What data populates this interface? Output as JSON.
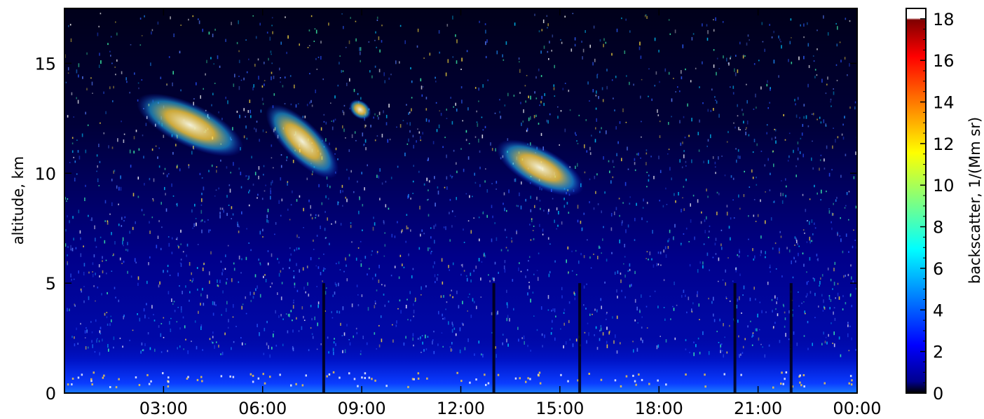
{
  "chart_data": {
    "type": "heatmap",
    "title": "",
    "xlabel": "",
    "ylabel": "altitude, km",
    "x_tick_labels": [
      "03:00",
      "06:00",
      "09:00",
      "12:00",
      "15:00",
      "18:00",
      "21:00",
      "00:00"
    ],
    "x_tick_hours": [
      3,
      6,
      9,
      12,
      15,
      18,
      21,
      24
    ],
    "xlim_hours": [
      0,
      24
    ],
    "y_tick_labels": [
      "0",
      "5",
      "10",
      "15"
    ],
    "y_tick_values": [
      0,
      5,
      10,
      15
    ],
    "ylim": [
      0,
      17.5
    ],
    "colorbar": {
      "label": "backscatter, 1/(Mm sr)",
      "tick_labels": [
        "0",
        "2",
        "4",
        "6",
        "8",
        "10",
        "12",
        "14",
        "16",
        "18"
      ],
      "tick_values": [
        0,
        2,
        4,
        6,
        8,
        10,
        12,
        14,
        16,
        18
      ],
      "range": [
        0,
        18.5
      ],
      "colormap": "jet"
    },
    "features": [
      {
        "kind": "cirrus",
        "time_hours": [
          2.3,
          5.3
        ],
        "altitude_km": [
          10.8,
          13.6
        ],
        "backscatter": 10
      },
      {
        "kind": "cirrus",
        "time_hours": [
          6.4,
          8.0
        ],
        "altitude_km": [
          9.6,
          13.3
        ],
        "backscatter": 12
      },
      {
        "kind": "cirrus",
        "time_hours": [
          8.7,
          9.2
        ],
        "altitude_km": [
          12.5,
          13.3
        ],
        "backscatter": 8
      },
      {
        "kind": "cirrus",
        "time_hours": [
          13.2,
          15.6
        ],
        "altitude_km": [
          9.0,
          11.5
        ],
        "backscatter": 14
      },
      {
        "kind": "boundary_layer",
        "time_hours": [
          0,
          24
        ],
        "altitude_km": [
          0,
          1.5
        ],
        "backscatter": 3
      }
    ],
    "dropout_hours": [
      7.85,
      13.0,
      15.6,
      20.3,
      22.0
    ]
  }
}
